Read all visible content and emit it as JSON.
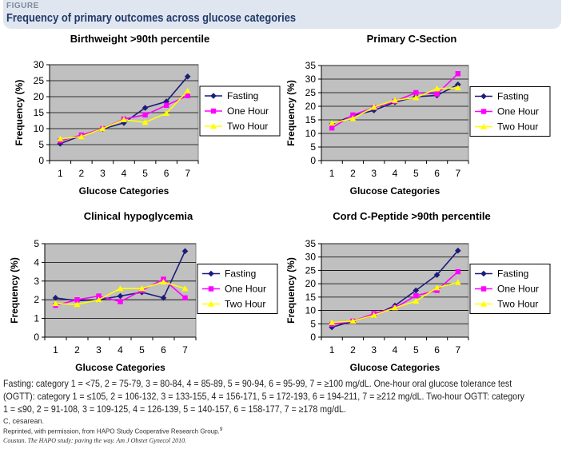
{
  "figure": {
    "label": "FIGURE",
    "title": "Frequency of primary outcomes across glucose categories"
  },
  "colors": {
    "fasting": "#1c1c7a",
    "one_hour": "#ff00ff",
    "two_hour": "#ffff00",
    "plot_bg": "#c0c0c0",
    "header_bg": "#dfe6ef"
  },
  "chart_data": [
    {
      "type": "line",
      "title": "Birthweight >90th percentile",
      "xlabel": "Glucose Categories",
      "ylabel": "Frequency (%)",
      "categories": [
        "1",
        "2",
        "3",
        "4",
        "5",
        "6",
        "7"
      ],
      "ylim": [
        0,
        30
      ],
      "yticks": [
        0,
        5,
        10,
        15,
        20,
        25,
        30
      ],
      "grid": true,
      "legend": "right",
      "series": [
        {
          "name": "Fasting",
          "values": [
            5.3,
            7.8,
            9.9,
            11.8,
            16.5,
            18.5,
            26.3
          ]
        },
        {
          "name": "One Hour",
          "values": [
            6.2,
            8.0,
            10.0,
            13.0,
            14.3,
            17.3,
            20.3
          ]
        },
        {
          "name": "Two Hour",
          "values": [
            6.8,
            7.5,
            10.0,
            12.8,
            12.0,
            14.8,
            21.8
          ]
        }
      ]
    },
    {
      "type": "line",
      "title": "Primary C-Section",
      "xlabel": "Glucose Categories",
      "ylabel": "Frequency (%)",
      "categories": [
        "1",
        "2",
        "3",
        "4",
        "5",
        "6",
        "7"
      ],
      "ylim": [
        0,
        35
      ],
      "yticks": [
        0,
        5,
        10,
        15,
        20,
        25,
        30,
        35
      ],
      "grid": true,
      "legend": "right",
      "series": [
        {
          "name": "Fasting",
          "values": [
            13.5,
            16.5,
            18.5,
            21.5,
            23.5,
            24.0,
            28.0
          ]
        },
        {
          "name": "One Hour",
          "values": [
            12.0,
            16.8,
            19.5,
            21.8,
            25.0,
            24.5,
            32.0
          ]
        },
        {
          "name": "Two Hour",
          "values": [
            13.8,
            15.5,
            19.7,
            22.2,
            23.2,
            26.5,
            26.8
          ]
        }
      ]
    },
    {
      "type": "line",
      "title": "Clinical hypoglycemia",
      "xlabel": "Glucose Categories",
      "ylabel": "Frequency (%)",
      "categories": [
        "1",
        "2",
        "3",
        "4",
        "5",
        "6",
        "7"
      ],
      "ylim": [
        0,
        5
      ],
      "yticks": [
        0,
        1,
        2,
        3,
        4,
        5
      ],
      "grid": true,
      "legend": "right",
      "series": [
        {
          "name": "Fasting",
          "values": [
            2.1,
            1.95,
            2.0,
            2.2,
            2.4,
            2.1,
            4.6
          ]
        },
        {
          "name": "One Hour",
          "values": [
            1.7,
            2.0,
            2.2,
            1.9,
            2.5,
            3.1,
            2.1
          ]
        },
        {
          "name": "Two Hour",
          "values": [
            1.8,
            1.75,
            2.0,
            2.6,
            2.6,
            2.95,
            2.6
          ]
        }
      ]
    },
    {
      "type": "line",
      "title": "Cord C-Peptide >90th percentile",
      "xlabel": "Glucose Categories",
      "ylabel": "Frequency (%)",
      "categories": [
        "1",
        "2",
        "3",
        "4",
        "5",
        "6",
        "7"
      ],
      "ylim": [
        0,
        35
      ],
      "yticks": [
        0,
        5,
        10,
        15,
        20,
        25,
        30,
        35
      ],
      "grid": true,
      "legend": "right",
      "series": [
        {
          "name": "Fasting",
          "values": [
            3.7,
            6.0,
            8.2,
            11.8,
            17.5,
            23.3,
            32.4
          ]
        },
        {
          "name": "One Hour",
          "values": [
            4.8,
            6.0,
            8.8,
            11.0,
            15.5,
            17.5,
            24.5
          ]
        },
        {
          "name": "Two Hour",
          "values": [
            5.5,
            6.0,
            8.2,
            11.0,
            13.5,
            18.5,
            20.5
          ]
        }
      ]
    }
  ],
  "caption": {
    "line1": "Fasting: category 1 = <75, 2 = 75-79, 3 = 80-84, 4 = 85-89, 5 = 90-94, 6 = 95-99, 7 = ≥100 mg/dL. One-hour oral glucose tolerance test",
    "line2": "(OGTT): category 1 = ≤105, 2 = 106-132, 3 = 133-155, 4 = 156-171, 5 = 172-193, 6 = 194-211, 7 = ≥212 mg/dL. Two-hour OGTT: category",
    "line3": "1 = ≤90, 2 = 91-108, 3 = 109-125, 4 = 126-139, 5 = 140-157, 6 = 158-177, 7 = ≥178 mg/dL.",
    "abbrev": "C, cesarean.",
    "reprint": "Reprinted, with permission, from HAPO Study Cooperative Research Group.",
    "reprint_ref": "9",
    "citation": "Coustan. The HAPO study: paving the way. Am J Obstet Gynecol 2010."
  }
}
